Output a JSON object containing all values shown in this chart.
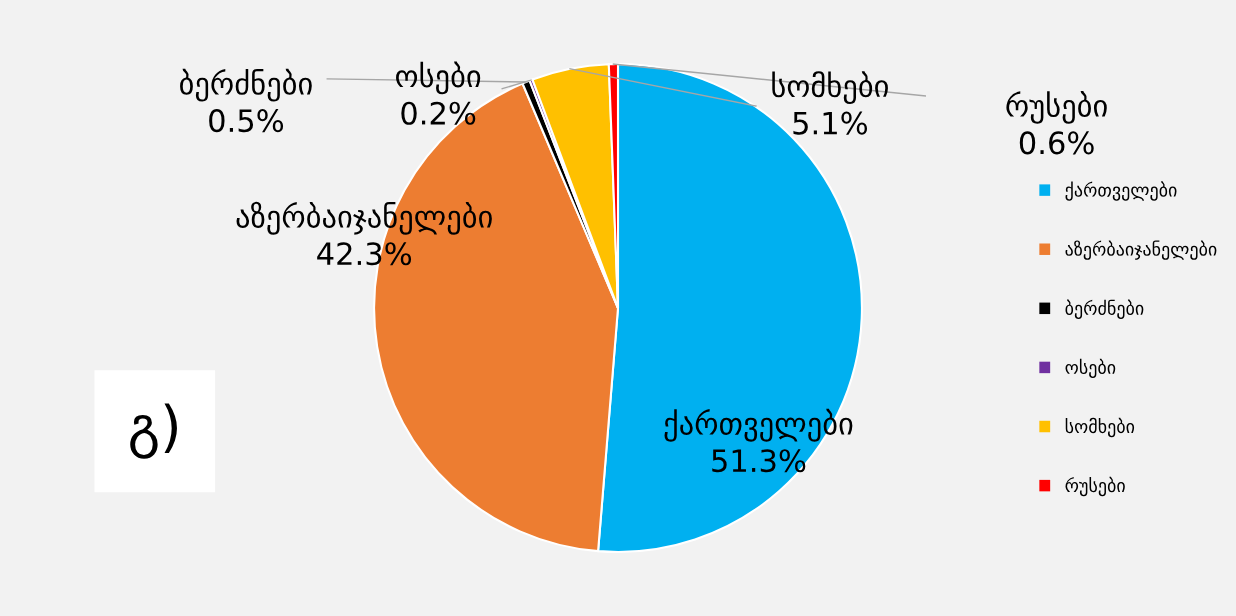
{
  "chart_data": {
    "type": "pie",
    "categories": [
      "ქართველები",
      "აზერბაიჯანელები",
      "ბერძნები",
      "ოსები",
      "სომხები",
      "რუსები"
    ],
    "values": [
      51.3,
      42.3,
      0.5,
      0.2,
      5.1,
      0.6
    ],
    "colors": [
      "#00b0f0",
      "#ed7d31",
      "#000000",
      "#7030a0",
      "#ffc000",
      "#ff0000"
    ],
    "value_labels": [
      "ქართველები\n51.3%",
      "აზერბაიჯანელები\n42.3%",
      "ბერძნები\n0.5%",
      "ოსები\n0.2%",
      "სომხები\n5.1%",
      "რუსები\n0.6%"
    ],
    "annotations": [
      "გ)"
    ],
    "legend": "right"
  }
}
